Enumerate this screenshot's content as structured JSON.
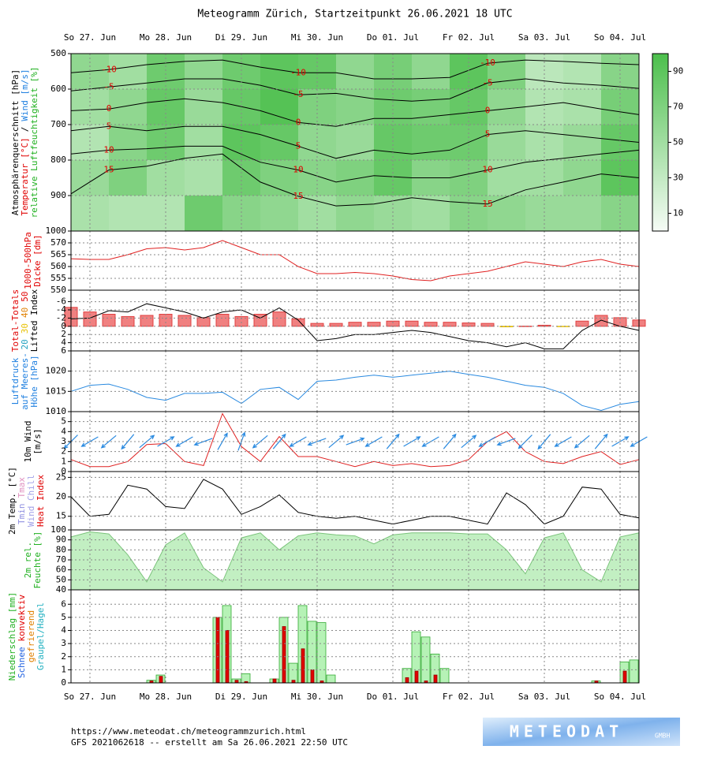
{
  "title": "Meteogramm Zürich, Startzeitpunkt 26.06.2021 18 UTC",
  "time_axis": {
    "xlim": [
      0,
      180
    ],
    "xticks": [
      {
        "value": 6,
        "label": "So 27. Jun"
      },
      {
        "value": 30,
        "label": "Mo 28. Jun"
      },
      {
        "value": 54,
        "label": "Di 29. Jun"
      },
      {
        "value": 78,
        "label": "Mi 30. Jun"
      },
      {
        "value": 102,
        "label": "Do 01. Jul"
      },
      {
        "value": 126,
        "label": "Fr 02. Jul"
      },
      {
        "value": 150,
        "label": "Sa 03. Jul"
      },
      {
        "value": 174,
        "label": "So 04. Jul"
      }
    ],
    "x": [
      0,
      6,
      12,
      18,
      24,
      30,
      36,
      42,
      48,
      54,
      60,
      66,
      72,
      78,
      84,
      90,
      96,
      102,
      108,
      114,
      120,
      126,
      132,
      138,
      144,
      150,
      156,
      162,
      168,
      174,
      180
    ]
  },
  "chart_data": [
    {
      "type": "contour",
      "ylabel": [
        [
          {
            "text": "Atmosphärenquerschnitt [hPa]",
            "color": "#000000"
          }
        ],
        [
          {
            "text": "Temperatur [°C]",
            "color": "#e00000"
          },
          {
            "text": "/",
            "color": "#000000"
          },
          {
            "text": "Wind [m/s]",
            "color": "#2080e0"
          }
        ],
        [
          {
            "text": "relative Luftfeuchtigkeit [%]",
            "color": "#20b020"
          }
        ]
      ],
      "ylim": [
        1000,
        500
      ],
      "yticks": [
        500,
        600,
        700,
        800,
        900,
        1000
      ],
      "x": [
        0,
        12,
        24,
        36,
        48,
        60,
        72,
        84,
        96,
        108,
        120,
        132,
        144,
        156,
        168,
        180
      ],
      "bands": [
        500,
        600,
        700,
        800,
        900,
        1000
      ],
      "humidity": [
        [
          60,
          50,
          40,
          55,
          45
        ],
        [
          50,
          60,
          65,
          70,
          40
        ],
        [
          80,
          85,
          80,
          50,
          40
        ],
        [
          60,
          55,
          50,
          45,
          80
        ],
        [
          80,
          85,
          90,
          80,
          65
        ],
        [
          90,
          95,
          85,
          70,
          60
        ],
        [
          85,
          70,
          60,
          65,
          50
        ],
        [
          60,
          65,
          55,
          70,
          60
        ],
        [
          75,
          80,
          85,
          85,
          55
        ],
        [
          60,
          75,
          80,
          65,
          50
        ],
        [
          90,
          85,
          80,
          70,
          65
        ],
        [
          70,
          60,
          55,
          50,
          60
        ],
        [
          35,
          40,
          45,
          50,
          55
        ],
        [
          40,
          45,
          55,
          60,
          55
        ],
        [
          65,
          75,
          85,
          90,
          65
        ]
      ],
      "colorbar": {
        "lim": [
          0,
          100
        ],
        "ticks": [
          10,
          30,
          50,
          70,
          90
        ],
        "colors": [
          "#f6fcf6",
          "#4cbf4c"
        ]
      },
      "line_color": "#000000",
      "label_color": "#e00000",
      "isotherms": [
        {
          "level": -10,
          "pressures": [
            554,
            545,
            531,
            522,
            518,
            538,
            554,
            554,
            571,
            571,
            567,
            527,
            518,
            522,
            527,
            531
          ]
        },
        {
          "level": -5,
          "pressures": [
            605,
            594,
            583,
            571,
            571,
            589,
            616,
            612,
            627,
            634,
            627,
            583,
            571,
            583,
            589,
            598
          ]
        },
        {
          "level": 0,
          "pressures": [
            661,
            656,
            638,
            627,
            638,
            661,
            694,
            705,
            683,
            683,
            672,
            661,
            650,
            638,
            656,
            672
          ]
        },
        {
          "level": 5,
          "pressures": [
            717,
            705,
            717,
            705,
            705,
            728,
            761,
            795,
            772,
            783,
            772,
            728,
            717,
            728,
            739,
            750
          ]
        },
        {
          "level": 10,
          "pressures": [
            783,
            772,
            768,
            761,
            761,
            806,
            828,
            862,
            844,
            850,
            850,
            828,
            806,
            795,
            783,
            772
          ]
        },
        {
          "level": 15,
          "pressures": [
            895,
            828,
            817,
            795,
            783,
            862,
            902,
            929,
            924,
            906,
            917,
            924,
            884,
            862,
            839,
            850
          ]
        }
      ]
    },
    {
      "type": "line",
      "ylabel": [
        [
          {
            "text": "1000-500hPa",
            "color": "#e00000"
          }
        ],
        [
          {
            "text": "Dicke [dm]",
            "color": "#e00000"
          }
        ]
      ],
      "ylim": [
        550,
        575
      ],
      "yticks": [
        550,
        555,
        560,
        565,
        570
      ],
      "series": [
        {
          "color": "#e02020",
          "values": [
            563.3,
            563,
            563,
            565,
            567.5,
            568,
            567,
            568,
            571,
            568,
            565,
            565,
            560,
            557,
            557,
            557.5,
            557,
            556,
            554.5,
            554,
            556,
            557,
            558,
            560,
            562,
            561,
            560,
            562,
            563,
            561,
            560
          ]
        }
      ]
    },
    {
      "type": "bar-line",
      "ylabel": [
        [
          {
            "text": "Total-Totals",
            "color": "#e00000"
          }
        ],
        [
          {
            "text": "20",
            "color": "#20a0c0"
          },
          {
            "text": "30",
            "color": "#e8c000"
          },
          {
            "text": "40",
            "color": "#e08000"
          },
          {
            "text": "50",
            "color": "#e00000"
          }
        ],
        [
          {
            "text": "Lifted Index",
            "color": "#000000"
          }
        ]
      ],
      "ylim": [
        6,
        -8.8
      ],
      "yticks": [
        -6,
        -4,
        -2,
        0,
        2,
        4,
        6
      ],
      "series": [
        {
          "color": "#000000",
          "values": [
            -1.8,
            -2,
            -3.8,
            -3.5,
            -5.5,
            -4.5,
            -3.5,
            -2,
            -3.5,
            -4,
            -2,
            -4.5,
            -1.5,
            3.5,
            3,
            2,
            2,
            1.5,
            1,
            1.5,
            2.5,
            3.5,
            4,
            5,
            4,
            5.5,
            5.5,
            1,
            -1.5,
            0,
            1
          ]
        }
      ],
      "tt": {
        "color": "#e04040",
        "color_below": "#e8c000",
        "ylim": [
          33,
          59.5
        ],
        "values": [
          52,
          50,
          49,
          48,
          48.5,
          49,
          48.5,
          47.5,
          49,
          48,
          49,
          50,
          47,
          45,
          45,
          45.5,
          45.5,
          46,
          46,
          45.5,
          45.5,
          45.2,
          45,
          43.5,
          43.8,
          44.2,
          43.6,
          46,
          48.5,
          47.5,
          46.5
        ]
      }
    },
    {
      "type": "line",
      "ylabel": [
        [
          {
            "text": "Luftdruck",
            "color": "#2080e0"
          }
        ],
        [
          {
            "text": "auf Meeres-",
            "color": "#2080e0"
          }
        ],
        [
          {
            "text": "Höhe [hPa]",
            "color": "#2080e0"
          }
        ]
      ],
      "ylim": [
        1010,
        1025
      ],
      "yticks": [
        1010,
        1015,
        1020
      ],
      "series": [
        {
          "color": "#2a8ae0",
          "values": [
            1015,
            1016.5,
            1016.8,
            1015.5,
            1013.5,
            1012.8,
            1014.5,
            1014.5,
            1014.8,
            1012,
            1015.5,
            1016,
            1013,
            1017.5,
            1017.8,
            1018.5,
            1019,
            1018.5,
            1019,
            1019.5,
            1020,
            1019.2,
            1018.5,
            1017.5,
            1016.5,
            1016,
            1014.5,
            1011.5,
            1010.3,
            1011.8,
            1012.5
          ]
        }
      ]
    },
    {
      "type": "line",
      "ylabel": [
        [
          {
            "text": "10m Wind",
            "color": "#000000"
          }
        ],
        [
          {
            "text": "[m/s]",
            "color": "#000000"
          }
        ]
      ],
      "ylim": [
        0,
        6
      ],
      "yticks": [
        0,
        1,
        2,
        3,
        4,
        5
      ],
      "series": [
        {
          "color": "#e02020",
          "values": [
            1.2,
            0.5,
            0.5,
            1,
            2.7,
            2.8,
            1,
            0.6,
            5.8,
            2.5,
            1,
            3.5,
            1.5,
            1.5,
            1,
            0.5,
            1,
            0.6,
            0.8,
            0.5,
            0.6,
            1.2,
            3,
            4,
            2,
            1,
            0.8,
            1.5,
            2,
            0.7,
            1.2
          ]
        }
      ],
      "directions": [
        45,
        60,
        50,
        40,
        230,
        240,
        60,
        70,
        210,
        200,
        50,
        220,
        60,
        70,
        230,
        250,
        60,
        220,
        240,
        60,
        220,
        230,
        60,
        70,
        45,
        40,
        60,
        50,
        220,
        240,
        60
      ],
      "arrow_color": "#2a8ae0"
    },
    {
      "type": "line",
      "ylabel": [
        [
          {
            "text": "2m Temp. [°C]",
            "color": "#000000"
          }
        ],
        [
          {
            "text": "Tmin",
            "color": "#9090e0"
          },
          {
            "text": "Tmax",
            "color": "#e090c0"
          }
        ],
        [
          {
            "text": "Wind Chill",
            "color": "#a0a0e8"
          }
        ],
        [
          {
            "text": "Heat Index",
            "color": "#e00000"
          }
        ]
      ],
      "ylim": [
        11.5,
        26.5
      ],
      "yticks": [
        15,
        20,
        25
      ],
      "series": [
        {
          "color": "#000000",
          "values": [
            20,
            15,
            15.5,
            23,
            22,
            17.5,
            17,
            24.5,
            22,
            15.5,
            17.5,
            20.5,
            16,
            15,
            14.5,
            15,
            14,
            13,
            14,
            15,
            15,
            14,
            13,
            21,
            18,
            13,
            15,
            22.5,
            22,
            15.5,
            14.6
          ]
        }
      ]
    },
    {
      "type": "area",
      "ylabel": [
        [
          {
            "text": "2m rel.",
            "color": "#20b020"
          }
        ],
        [
          {
            "text": "Feuchte [%]",
            "color": "#20b020"
          }
        ]
      ],
      "ylim": [
        40,
        100
      ],
      "yticks": [
        40,
        50,
        60,
        70,
        80,
        90,
        100
      ],
      "series": [
        {
          "color": "#c2efc2",
          "values": [
            93,
            98,
            96,
            75,
            48,
            85,
            97,
            62,
            48,
            92,
            97,
            80,
            94,
            97,
            95,
            94,
            86,
            95,
            97,
            97,
            97,
            96,
            96,
            80,
            56,
            92,
            97,
            60,
            48,
            93,
            97
          ]
        }
      ]
    },
    {
      "type": "bar",
      "ylabel": [
        [
          {
            "text": "Niederschlag [mm]",
            "color": "#20b020"
          }
        ],
        [
          {
            "text": "Schnee",
            "color": "#2060e0"
          },
          {
            "text": "konvektiv",
            "color": "#e00000"
          }
        ],
        [
          {
            "text": "gefrierend",
            "color": "#e08000"
          }
        ],
        [
          {
            "text": "Graupel/Hagel",
            "color": "#20b0c0"
          }
        ]
      ],
      "ylim": [
        0,
        7.1
      ],
      "yticks": [
        0,
        1,
        2,
        3,
        4,
        5,
        6
      ],
      "x": [
        24,
        27,
        45,
        48,
        51,
        54,
        63,
        66,
        69,
        72,
        75,
        78,
        81,
        105,
        108,
        111,
        114,
        117,
        165,
        174,
        177
      ],
      "series": [
        {
          "color": "#b6f2b6",
          "values": [
            0.2,
            0.6,
            5.0,
            5.9,
            0.3,
            0.7,
            0.3,
            5.0,
            1.5,
            5.9,
            4.7,
            4.6,
            0.6,
            1.1,
            3.9,
            3.5,
            2.2,
            1.1,
            0.15,
            1.6,
            1.75
          ]
        },
        {
          "color": "#e00000",
          "values": [
            0.15,
            0.5,
            5.0,
            4.0,
            0.2,
            0.1,
            0.3,
            4.3,
            0.2,
            2.6,
            1.0,
            0.15,
            0,
            0.4,
            0.9,
            0.15,
            0.6,
            0,
            0.15,
            0.9,
            0
          ]
        }
      ]
    }
  ],
  "footer": {
    "url": "https://www.meteodat.ch/meteogrammzurich.html",
    "info": "GFS 2021062618 -- erstellt am Sa 26.06.2021 22:50 UTC"
  },
  "logo": {
    "name": "METEODAT",
    "suffix": "GMBH"
  }
}
